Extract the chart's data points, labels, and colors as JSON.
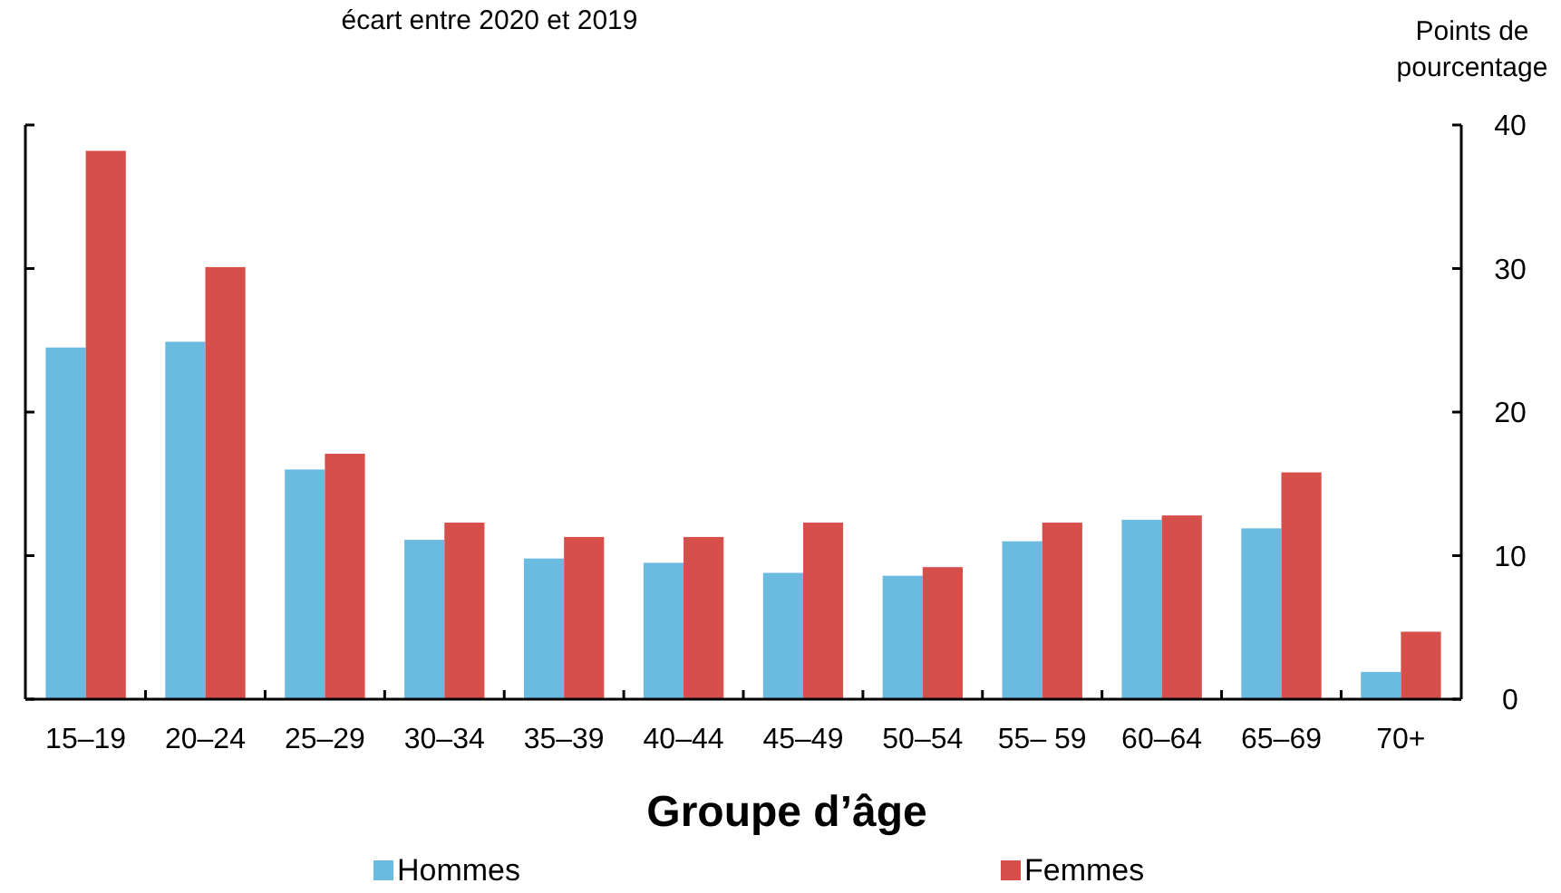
{
  "chart_data": {
    "type": "bar",
    "title": "écart entre 2020 et 2019",
    "xlabel": "Groupe d’âge",
    "ylabel": "Points de pourcentage",
    "categories": [
      "15–19",
      "20–24",
      "25–29",
      "30–34",
      "35–39",
      "40–44",
      "45–49",
      "50–54",
      "55– 59",
      "60–64",
      "65–69",
      "70+"
    ],
    "series": [
      {
        "name": "Hommes",
        "color": "#6bbae0",
        "values": [
          24.5,
          24.9,
          16.0,
          11.1,
          9.8,
          9.5,
          8.8,
          8.6,
          11.0,
          12.5,
          11.9,
          1.9
        ]
      },
      {
        "name": "Femmes",
        "color": "#d64f4b",
        "values": [
          38.2,
          30.1,
          17.1,
          12.3,
          11.3,
          11.3,
          12.3,
          9.2,
          12.3,
          12.8,
          15.8,
          4.7
        ]
      }
    ],
    "ylim": [
      0,
      40
    ],
    "yticks": [
      0,
      10,
      20,
      30,
      40
    ],
    "grid": false,
    "legend": "bottom"
  }
}
